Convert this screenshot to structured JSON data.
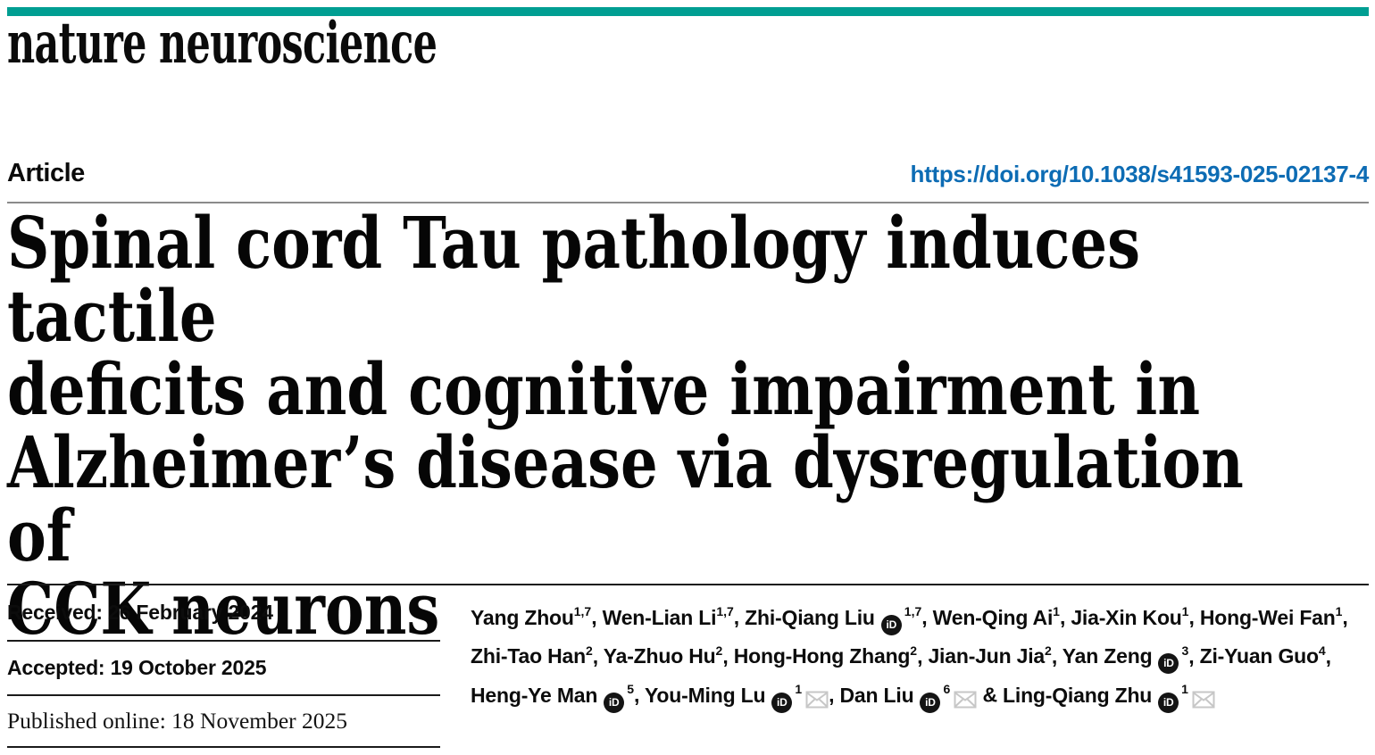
{
  "masthead": {
    "journal_name": "nature neuroscience",
    "accent_color": "#009e92"
  },
  "article_header": {
    "type_label": "Article",
    "doi_url": "https://doi.org/10.1038/s41593-025-02137-4",
    "link_color": "#0d6cb4"
  },
  "title": "Spinal cord Tau pathology induces tactile\ndeficits and cognitive impairment in\nAlzheimer’s disease via dysregulation of\nCCK neurons",
  "history": {
    "received": "Received: 26 February 2024",
    "accepted": "Accepted: 19 October 2025",
    "published": "Published online: 18 November 2025"
  },
  "authors": {
    "orcid_icon_label": "iD",
    "separator": ", ",
    "last_separator": " & ",
    "list": [
      {
        "name": "Yang Zhou",
        "sup": "1,7"
      },
      {
        "name": "Wen-Lian Li",
        "sup": "1,7"
      },
      {
        "name": "Zhi-Qiang Liu",
        "orcid": true,
        "sup": "1,7"
      },
      {
        "name": "Wen-Qing Ai",
        "sup": "1"
      },
      {
        "name": "Jia-Xin Kou",
        "sup": "1"
      },
      {
        "name": "Hong-Wei Fan",
        "sup": "1"
      },
      {
        "name": "Zhi-Tao Han",
        "sup": "2"
      },
      {
        "name": "Ya-Zhuo Hu",
        "sup": "2"
      },
      {
        "name": "Hong-Hong Zhang",
        "sup": "2"
      },
      {
        "name": "Jian-Jun Jia",
        "sup": "2"
      },
      {
        "name": "Yan Zeng",
        "orcid": true,
        "sup": "3"
      },
      {
        "name": "Zi-Yuan Guo",
        "sup": "4"
      },
      {
        "name": "Heng-Ye Man",
        "orcid": true,
        "sup": "5"
      },
      {
        "name": "You-Ming Lu",
        "orcid": true,
        "sup": "1",
        "email": true
      },
      {
        "name": "Dan Liu",
        "orcid": true,
        "sup": "6",
        "email": true
      },
      {
        "name": "Ling-Qiang Zhu",
        "orcid": true,
        "sup": "1",
        "email": true
      }
    ]
  }
}
